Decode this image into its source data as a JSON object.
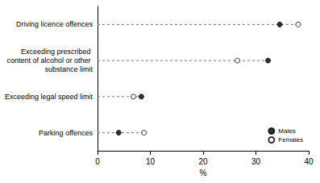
{
  "chart_data": {
    "type": "scatter",
    "orientation": "horizontal",
    "categories": [
      "Driving licence offences",
      "Exceeding prescribed content of alcohol or other substance limit",
      "Exceeding legal speed limit",
      "Parking offences"
    ],
    "series": [
      {
        "name": "Males",
        "color": "#000000",
        "marker": "circle",
        "values": [
          34.5,
          32.3,
          8.3,
          4.0
        ]
      },
      {
        "name": "Females",
        "color": "#000000",
        "marker": "circle_open",
        "values": [
          38.0,
          26.5,
          6.8,
          8.8
        ]
      }
    ],
    "x_label": "%",
    "xlim": [
      0,
      40
    ],
    "xticks": [
      0,
      10,
      20,
      30,
      40
    ],
    "grid": false,
    "legend": "bottom-right",
    "line_style": "dashed"
  }
}
